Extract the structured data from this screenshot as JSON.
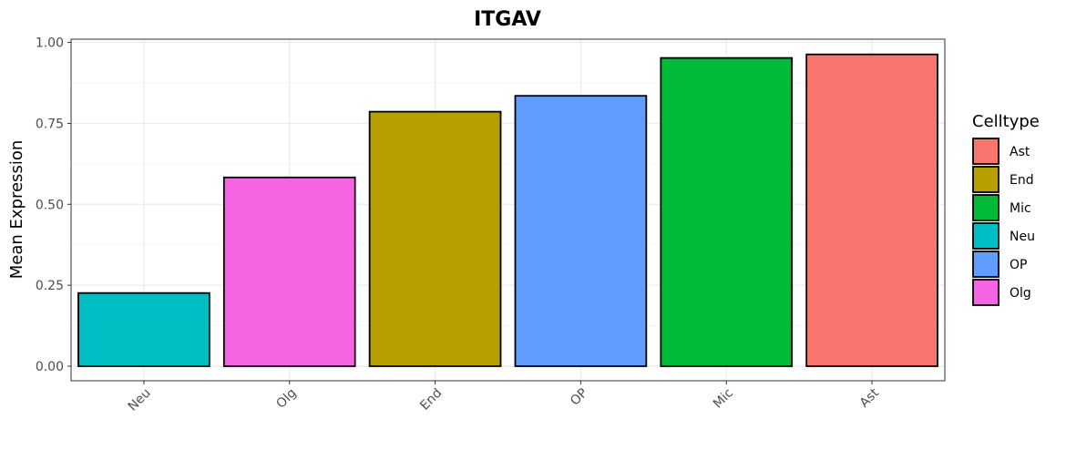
{
  "chart_data": {
    "type": "bar",
    "title": "ITGAV",
    "xlabel": "",
    "ylabel": "Mean Expression",
    "categories": [
      "Neu",
      "Olg",
      "End",
      "OP",
      "Mic",
      "Ast"
    ],
    "values": [
      0.226,
      0.583,
      0.786,
      0.835,
      0.952,
      0.963
    ],
    "colors": [
      "#00BFC4",
      "#F564E3",
      "#B79F00",
      "#619CFF",
      "#00BA38",
      "#F8766D"
    ],
    "ylim": [
      -0.045,
      1.01
    ],
    "yticks": [
      0.0,
      0.25,
      0.5,
      0.75,
      1.0
    ],
    "ytick_labels": [
      "0.00",
      "0.25",
      "0.50",
      "0.75",
      "1.00"
    ],
    "grid": true,
    "legend": {
      "title": "Celltype",
      "placement": "right",
      "entries": [
        {
          "label": "Ast",
          "color": "#F8766D"
        },
        {
          "label": "End",
          "color": "#B79F00"
        },
        {
          "label": "Mic",
          "color": "#00BA38"
        },
        {
          "label": "Neu",
          "color": "#00BFC4"
        },
        {
          "label": "OP",
          "color": "#619CFF"
        },
        {
          "label": "Olg",
          "color": "#F564E3"
        }
      ]
    }
  }
}
